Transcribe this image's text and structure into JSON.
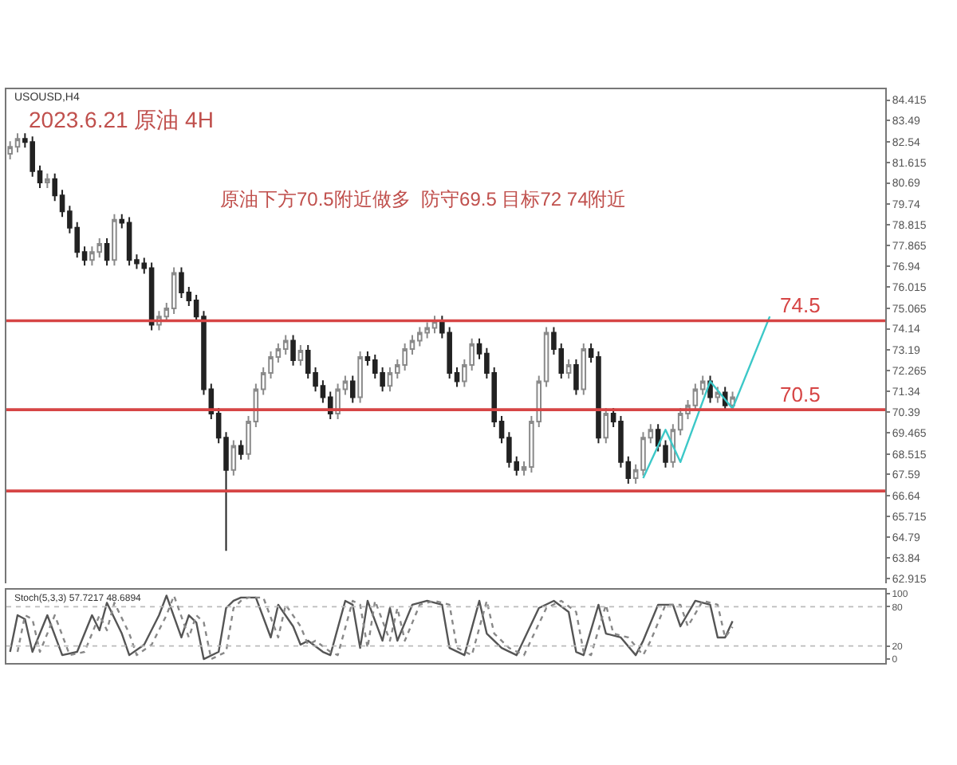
{
  "chart_data": [
    {
      "type": "candlestick",
      "title": "2023.6.21 原油 4H",
      "subtitle": "原油下方70.5附近做多  防守69.5 目标72 74附近",
      "annotations": [
        "USOUSD,H4"
      ],
      "categories": [
        null,
        null,
        null,
        null,
        null,
        null,
        null,
        null,
        null,
        null,
        null,
        null,
        null,
        null,
        null,
        null,
        null,
        null,
        null,
        null,
        null,
        null,
        null,
        null,
        null,
        null,
        null,
        null,
        null,
        null,
        null,
        null,
        null,
        null,
        null,
        null,
        null,
        null,
        null,
        null,
        null,
        null,
        null,
        null,
        null,
        null,
        null,
        null,
        null,
        null,
        null,
        null,
        null,
        null,
        null,
        null,
        null,
        null,
        null,
        null,
        null,
        null,
        null,
        null,
        null,
        null,
        null,
        null,
        null,
        null,
        null,
        null,
        null,
        null,
        null,
        null,
        null,
        null,
        null,
        null,
        null,
        null,
        null,
        null,
        null,
        null,
        null,
        null,
        null,
        null,
        null,
        null,
        null,
        null,
        null,
        null,
        null,
        null,
        null,
        null,
        null,
        null,
        null,
        null,
        null,
        null,
        null,
        null,
        null,
        null,
        null,
        null,
        null,
        null,
        null,
        null,
        null,
        null
      ],
      "ohlc": [
        [
          82.0,
          82.56,
          81.75,
          82.31
        ],
        [
          82.31,
          82.92,
          82.06,
          82.67
        ],
        [
          82.67,
          82.92,
          82.28,
          82.53
        ],
        [
          82.53,
          82.78,
          80.97,
          81.22
        ],
        [
          81.22,
          81.47,
          80.46,
          80.71
        ],
        [
          80.71,
          81.11,
          80.46,
          80.86
        ],
        [
          80.86,
          81.11,
          79.88,
          80.13
        ],
        [
          80.13,
          80.38,
          79.16,
          79.41
        ],
        [
          79.41,
          79.66,
          78.43,
          78.68
        ],
        [
          78.68,
          78.93,
          77.34,
          77.59
        ],
        [
          77.59,
          77.84,
          76.98,
          77.23
        ],
        [
          77.23,
          77.84,
          76.98,
          77.59
        ],
        [
          77.59,
          78.2,
          77.34,
          77.95
        ],
        [
          77.95,
          78.2,
          76.98,
          77.23
        ],
        [
          77.23,
          79.29,
          76.98,
          79.04
        ],
        [
          79.04,
          79.29,
          78.65,
          78.9
        ],
        [
          78.9,
          79.15,
          76.98,
          77.23
        ],
        [
          77.23,
          77.48,
          76.83,
          77.08
        ],
        [
          77.08,
          77.33,
          76.61,
          76.86
        ],
        [
          76.86,
          77.11,
          74.07,
          74.32
        ],
        [
          74.32,
          74.94,
          74.07,
          74.69
        ],
        [
          74.69,
          75.3,
          74.44,
          75.05
        ],
        [
          75.05,
          76.9,
          74.8,
          76.65
        ],
        [
          76.65,
          76.9,
          75.52,
          75.77
        ],
        [
          75.77,
          76.02,
          75.16,
          75.41
        ],
        [
          75.41,
          75.66,
          74.44,
          74.69
        ],
        [
          74.69,
          74.94,
          71.17,
          71.42
        ],
        [
          71.42,
          71.67,
          70.08,
          70.33
        ],
        [
          70.33,
          70.58,
          68.99,
          69.24
        ],
        [
          69.24,
          69.49,
          64.16,
          67.79
        ],
        [
          67.79,
          69.13,
          67.54,
          68.88
        ],
        [
          68.88,
          69.13,
          68.26,
          68.51
        ],
        [
          68.51,
          70.22,
          68.26,
          69.97
        ],
        [
          69.97,
          71.67,
          69.72,
          71.42
        ],
        [
          71.42,
          72.4,
          71.17,
          72.15
        ],
        [
          72.15,
          73.12,
          71.9,
          72.87
        ],
        [
          72.87,
          73.48,
          72.62,
          73.23
        ],
        [
          73.23,
          73.85,
          72.98,
          73.6
        ],
        [
          73.6,
          73.85,
          72.48,
          72.73
        ],
        [
          72.73,
          73.41,
          72.48,
          73.16
        ],
        [
          73.16,
          73.41,
          71.9,
          72.15
        ],
        [
          72.15,
          72.4,
          71.32,
          71.57
        ],
        [
          71.57,
          71.82,
          70.81,
          71.06
        ],
        [
          71.06,
          71.31,
          70.08,
          70.33
        ],
        [
          70.33,
          71.67,
          70.08,
          71.42
        ],
        [
          71.42,
          72.03,
          71.17,
          71.78
        ],
        [
          71.78,
          72.03,
          70.81,
          71.06
        ],
        [
          71.06,
          73.12,
          70.81,
          72.87
        ],
        [
          72.87,
          73.12,
          72.48,
          72.73
        ],
        [
          72.73,
          72.98,
          71.9,
          72.15
        ],
        [
          72.15,
          72.4,
          71.32,
          71.57
        ],
        [
          71.57,
          72.4,
          71.32,
          72.15
        ],
        [
          72.15,
          72.76,
          71.9,
          72.51
        ],
        [
          72.51,
          73.48,
          72.26,
          73.23
        ],
        [
          73.23,
          73.85,
          72.98,
          73.6
        ],
        [
          73.6,
          74.21,
          73.35,
          73.96
        ],
        [
          73.96,
          74.43,
          73.71,
          74.18
        ],
        [
          74.18,
          74.72,
          73.93,
          74.47
        ],
        [
          74.47,
          74.72,
          73.71,
          73.96
        ],
        [
          73.96,
          74.21,
          71.9,
          72.15
        ],
        [
          72.15,
          72.4,
          71.53,
          71.78
        ],
        [
          71.78,
          72.76,
          71.53,
          72.51
        ],
        [
          72.51,
          73.7,
          72.26,
          73.45
        ],
        [
          73.45,
          73.7,
          72.77,
          73.02
        ],
        [
          73.02,
          73.27,
          71.9,
          72.15
        ],
        [
          72.15,
          72.4,
          69.72,
          69.97
        ],
        [
          69.97,
          70.22,
          68.99,
          69.24
        ],
        [
          69.24,
          69.49,
          67.9,
          68.15
        ],
        [
          68.15,
          68.4,
          67.54,
          67.79
        ],
        [
          67.79,
          68.18,
          67.54,
          67.93
        ],
        [
          67.93,
          70.22,
          67.68,
          69.97
        ],
        [
          69.97,
          72.03,
          69.72,
          71.78
        ],
        [
          71.78,
          74.21,
          71.53,
          73.96
        ],
        [
          73.96,
          74.21,
          72.98,
          73.23
        ],
        [
          73.23,
          73.48,
          71.9,
          72.15
        ],
        [
          72.15,
          72.76,
          71.9,
          72.51
        ],
        [
          72.51,
          72.76,
          71.17,
          71.42
        ],
        [
          71.42,
          73.48,
          71.17,
          73.23
        ],
        [
          73.23,
          73.48,
          72.62,
          72.87
        ],
        [
          72.87,
          73.12,
          68.99,
          69.24
        ],
        [
          69.24,
          70.58,
          68.99,
          70.33
        ],
        [
          70.33,
          70.58,
          69.72,
          69.97
        ],
        [
          69.97,
          70.22,
          67.9,
          68.15
        ],
        [
          68.15,
          68.4,
          67.18,
          67.43
        ],
        [
          67.43,
          68.04,
          67.18,
          67.79
        ],
        [
          67.79,
          69.49,
          67.54,
          69.24
        ],
        [
          69.24,
          69.85,
          68.99,
          69.6
        ],
        [
          69.6,
          69.85,
          68.63,
          68.88
        ],
        [
          68.88,
          69.13,
          67.9,
          68.15
        ],
        [
          68.15,
          69.85,
          67.9,
          69.6
        ],
        [
          69.6,
          70.58,
          69.35,
          70.33
        ],
        [
          70.33,
          70.94,
          70.08,
          70.69
        ],
        [
          70.69,
          71.67,
          70.44,
          71.42
        ],
        [
          71.42,
          72.03,
          71.17,
          71.78
        ],
        [
          71.78,
          72.03,
          70.81,
          71.06
        ],
        [
          71.06,
          71.53,
          70.81,
          71.28
        ],
        [
          71.28,
          71.53,
          70.44,
          70.69
        ],
        [
          70.69,
          71.31,
          70.44,
          71.06
        ],
        null,
        null,
        null,
        null,
        null,
        null,
        null,
        null,
        null,
        null,
        null,
        null,
        null,
        null,
        null,
        null,
        null,
        null,
        null,
        null
      ],
      "series": [
        {
          "type": "line",
          "color": "#3cc8c8",
          "values": [
            null,
            null,
            null,
            null,
            null,
            null,
            null,
            null,
            null,
            null,
            null,
            null,
            null,
            null,
            null,
            null,
            null,
            null,
            null,
            null,
            null,
            null,
            null,
            null,
            null,
            null,
            null,
            null,
            null,
            null,
            null,
            null,
            null,
            null,
            null,
            null,
            null,
            null,
            null,
            null,
            null,
            null,
            null,
            null,
            null,
            null,
            null,
            null,
            null,
            null,
            null,
            null,
            null,
            null,
            null,
            null,
            null,
            null,
            null,
            null,
            null,
            null,
            null,
            null,
            null,
            null,
            null,
            null,
            null,
            null,
            null,
            null,
            null,
            null,
            null,
            null,
            null,
            null,
            null,
            null,
            null,
            null,
            null,
            null,
            null,
            67.43,
            null,
            null,
            69.6,
            null,
            68.15,
            null,
            null,
            null,
            71.78,
            null,
            null,
            70.55,
            null,
            null,
            null,
            null,
            74.69,
            null,
            null,
            null,
            null,
            null,
            null,
            null,
            null,
            null,
            null,
            null,
            null,
            null,
            null,
            null
          ]
        }
      ],
      "ylim": [
        62.7,
        84.9
      ],
      "yticks": [
        62.915,
        63.84,
        64.79,
        65.715,
        66.64,
        67.59,
        68.515,
        69.465,
        70.39,
        71.34,
        72.265,
        73.19,
        74.14,
        75.065,
        76.015,
        76.94,
        77.865,
        78.815,
        79.74,
        80.69,
        81.615,
        82.54,
        83.49,
        84.415
      ],
      "tick_labels": "y",
      "grid": false,
      "ref_lines": [
        {
          "axis": "y",
          "value": 74.5,
          "label": "74.5",
          "color": "#d64545"
        },
        {
          "axis": "y",
          "value": 70.5,
          "label": "70.5",
          "color": "#d64545"
        },
        {
          "axis": "y",
          "value": 66.85,
          "color": "#d64545"
        }
      ]
    },
    {
      "type": "line",
      "title": "Stoch(5,3,3) 57.7217 48.6894",
      "categories": [
        null,
        null,
        null,
        null,
        null,
        null,
        null,
        null,
        null,
        null,
        null,
        null,
        null,
        null,
        null,
        null,
        null,
        null,
        null,
        null,
        null,
        null,
        null,
        null,
        null,
        null,
        null,
        null,
        null,
        null,
        null,
        null,
        null,
        null,
        null,
        null,
        null,
        null,
        null,
        null,
        null,
        null,
        null,
        null,
        null,
        null,
        null,
        null,
        null,
        null,
        null,
        null,
        null,
        null,
        null,
        null,
        null,
        null,
        null,
        null,
        null,
        null,
        null,
        null,
        null,
        null,
        null,
        null,
        null,
        null,
        null,
        null,
        null,
        null,
        null,
        null,
        null,
        null,
        null,
        null,
        null,
        null,
        null,
        null,
        null,
        null,
        null,
        null,
        null,
        null,
        null,
        null,
        null,
        null,
        null,
        null,
        null,
        null,
        null,
        null,
        null,
        null,
        null,
        null,
        null,
        null,
        null,
        null,
        null,
        null,
        null,
        null,
        null,
        null,
        null,
        null,
        null,
        null
      ],
      "ylim": [
        -6,
        106
      ],
      "yticks": [
        0,
        20,
        80,
        100
      ],
      "tick_labels": "y",
      "grid": false,
      "ref_lines": [
        {
          "axis": "y",
          "value": 20,
          "color": "#bbbbbb",
          "line_style": "dotted"
        },
        {
          "axis": "y",
          "value": 80,
          "color": "#bbbbbb",
          "line_style": "dotted"
        }
      ],
      "series": [
        {
          "color": "#555555",
          "line_style": "solid",
          "values": [
            11,
            67,
            61,
            11,
            null,
            67,
            null,
            6,
            null,
            11,
            null,
            67,
            44,
            86,
            null,
            39,
            6,
            null,
            22,
            null,
            67,
            97,
            null,
            33,
            67,
            56,
            0,
            null,
            11,
            78,
            89,
            94,
            null,
            94,
            null,
            33,
            83,
            null,
            50,
            22,
            28,
            null,
            11,
            6,
            null,
            89,
            83,
            17,
            89,
            null,
            28,
            78,
            28,
            null,
            83,
            null,
            89,
            null,
            83,
            17,
            null,
            6,
            null,
            89,
            39,
            null,
            17,
            null,
            6,
            null,
            null,
            78,
            null,
            89,
            null,
            72,
            11,
            6,
            null,
            83,
            39,
            null,
            33,
            null,
            6,
            28,
            null,
            83,
            null,
            83,
            50,
            null,
            89,
            null,
            83,
            33,
            33,
            58,
            null,
            null,
            null,
            null,
            null,
            null,
            null,
            null,
            null,
            null,
            null,
            null,
            null,
            null,
            null,
            null,
            null,
            null,
            null,
            null
          ]
        },
        {
          "color": "#888888",
          "line_style": "dotted",
          "values": [
            null,
            11,
            67,
            61,
            11,
            null,
            67,
            null,
            6,
            null,
            11,
            null,
            67,
            44,
            86,
            null,
            39,
            6,
            null,
            22,
            null,
            67,
            97,
            null,
            33,
            67,
            56,
            0,
            null,
            11,
            78,
            89,
            94,
            null,
            94,
            null,
            33,
            83,
            null,
            50,
            22,
            28,
            null,
            11,
            6,
            null,
            89,
            83,
            17,
            89,
            null,
            28,
            78,
            28,
            null,
            83,
            null,
            89,
            null,
            83,
            17,
            null,
            6,
            null,
            89,
            39,
            null,
            17,
            null,
            6,
            null,
            null,
            78,
            null,
            89,
            null,
            72,
            11,
            6,
            null,
            83,
            39,
            null,
            33,
            null,
            6,
            28,
            null,
            83,
            null,
            83,
            50,
            null,
            89,
            null,
            83,
            33,
            49,
            null,
            null,
            null,
            null,
            null,
            null,
            null,
            null,
            null,
            null,
            null,
            null,
            null,
            null,
            null,
            null,
            null,
            null,
            null,
            null
          ]
        }
      ]
    }
  ]
}
